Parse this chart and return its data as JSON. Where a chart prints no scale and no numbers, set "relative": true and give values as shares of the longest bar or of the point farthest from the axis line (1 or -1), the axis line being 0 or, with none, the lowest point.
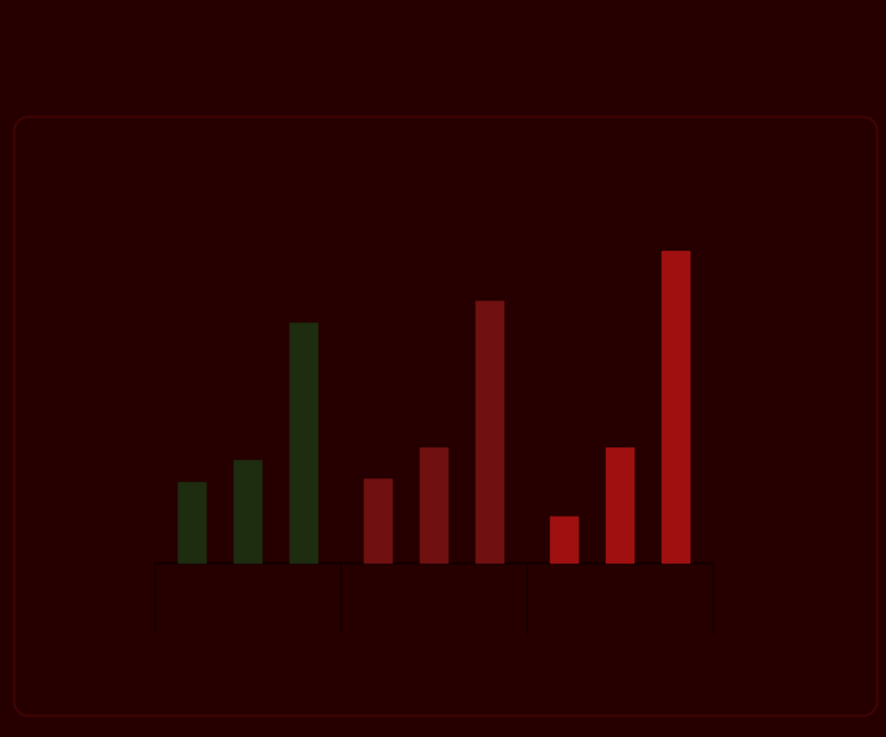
{
  "chart_data": {
    "type": "bar",
    "relative": true,
    "categories": [
      null,
      null,
      null
    ],
    "series": [
      {
        "colors": [
          "#1e2c10",
          "#701010",
          "#a01010"
        ],
        "values": [
          0.26,
          0.27,
          0.15
        ]
      },
      {
        "colors": [
          "#1e2c10",
          "#701010",
          "#a01010"
        ],
        "values": [
          0.33,
          0.37,
          0.37
        ]
      },
      {
        "colors": [
          "#1e2c10",
          "#701010",
          "#a01010"
        ],
        "values": [
          0.77,
          0.84,
          1
        ]
      }
    ]
  }
}
